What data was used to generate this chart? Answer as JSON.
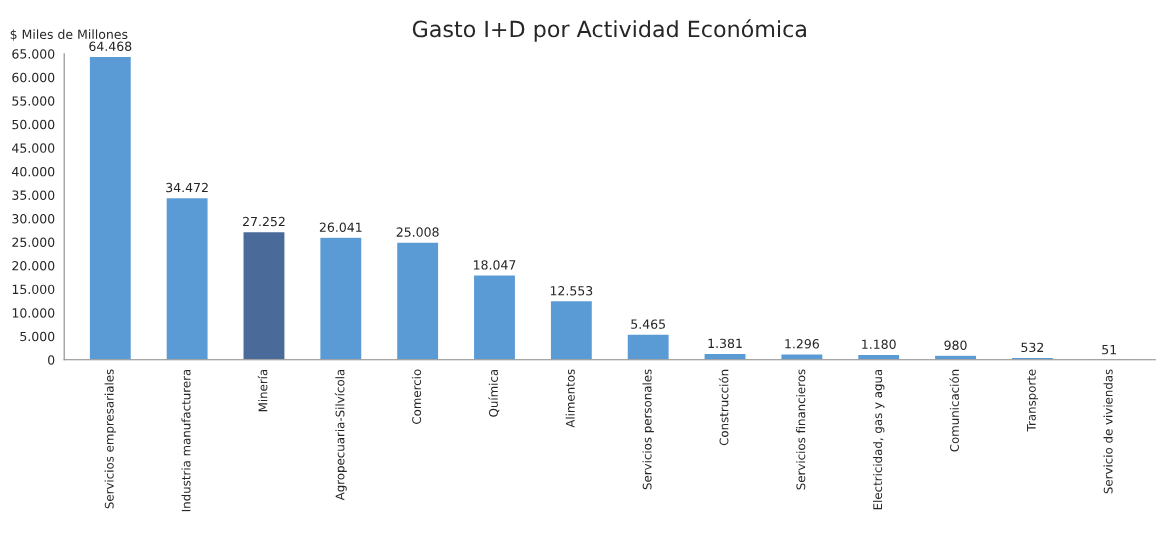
{
  "chart_data": {
    "type": "bar",
    "title": "Gasto I+D por Actividad Económica",
    "ylabel": "$ Miles de Millones",
    "categories": [
      "Servicios empresariales",
      "Industria manufacturera",
      "Minería",
      "Agropecuaria-Silvícola",
      "Comercio",
      "Química",
      "Alimentos",
      "Servicios personales",
      "Construcción",
      "Servicios financieros",
      "Electricidad, gas y agua",
      "Comunicación",
      "Transporte",
      "Servicio de viviendas"
    ],
    "values": [
      64468,
      34472,
      27252,
      26041,
      25008,
      18047,
      12553,
      5465,
      1381,
      1296,
      1180,
      980,
      532,
      51
    ],
    "colors": [
      "#5b9bd5",
      "#5b9bd5",
      "#4a6a9a",
      "#5b9bd5",
      "#5b9bd5",
      "#5b9bd5",
      "#5b9bd5",
      "#5b9bd5",
      "#5b9bd5",
      "#5b9bd5",
      "#5b9bd5",
      "#5b9bd5",
      "#5b9bd5",
      "#5b9bd5"
    ],
    "value_labels": [
      "64.468",
      "34.472",
      "27.252",
      "26.041",
      "25.008",
      "18.047",
      "12.553",
      "5.465",
      "1.381",
      "1.296",
      "1.180",
      "980",
      "532",
      "51"
    ],
    "ylim": [
      0,
      65000
    ],
    "yticks": [
      {
        "value": 0,
        "label": "0"
      },
      {
        "value": 5000,
        "label": "5.000"
      },
      {
        "value": 10000,
        "label": "10.000"
      },
      {
        "value": 15000,
        "label": "15.000"
      },
      {
        "value": 20000,
        "label": "20.000"
      },
      {
        "value": 25000,
        "label": "25.000"
      },
      {
        "value": 30000,
        "label": "30.000"
      },
      {
        "value": 35000,
        "label": "35.000"
      },
      {
        "value": 40000,
        "label": "40.000"
      },
      {
        "value": 45000,
        "label": "45.000"
      },
      {
        "value": 50000,
        "label": "50.000"
      },
      {
        "value": 55000,
        "label": "55.000"
      },
      {
        "value": 60000,
        "label": "60.000"
      },
      {
        "value": 65000,
        "label": "65.000"
      }
    ],
    "grid": false,
    "legend": false
  }
}
